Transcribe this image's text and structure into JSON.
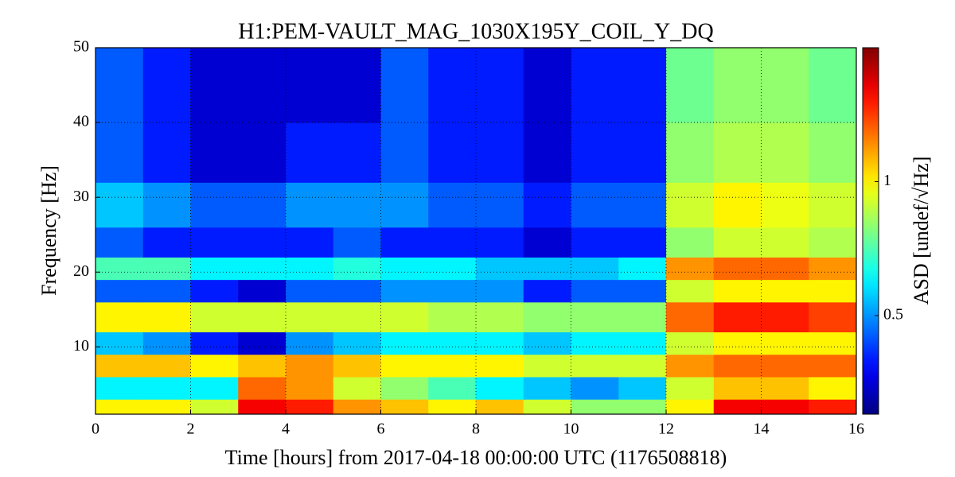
{
  "chart_data": {
    "type": "heatmap",
    "title": "H1:PEM-VAULT_MAG_1030X195Y_COIL_Y_DQ",
    "x_label": "Time [hours] from 2017-04-18 00:00:00 UTC (1176508818)",
    "y_label": "Frequency [Hz]",
    "xlim": [
      0,
      16
    ],
    "xticks": [
      0,
      2,
      4,
      6,
      8,
      10,
      12,
      14,
      16
    ],
    "ylim": [
      1,
      50
    ],
    "yticks": [
      10,
      20,
      30,
      40,
      50
    ],
    "grid": true,
    "x_bins": [
      0,
      1,
      2,
      3,
      4,
      5,
      6,
      7,
      8,
      9,
      10,
      11,
      12,
      13,
      14,
      15,
      16
    ],
    "y_bins": [
      1,
      3,
      6,
      9,
      12,
      16,
      19,
      22,
      26,
      32,
      40,
      50
    ],
    "values": [
      [
        1.0,
        1.0,
        0.9,
        1.6,
        1.5,
        1.2,
        1.1,
        1.0,
        1.1,
        0.9,
        0.8,
        0.8,
        1.0,
        1.6,
        1.6,
        1.5
      ],
      [
        0.6,
        0.6,
        0.6,
        1.3,
        1.2,
        0.9,
        0.8,
        0.7,
        0.6,
        0.55,
        0.5,
        0.55,
        0.9,
        1.1,
        1.1,
        1.0
      ],
      [
        1.1,
        1.1,
        1.0,
        1.1,
        1.2,
        1.1,
        1.0,
        1.0,
        1.0,
        0.9,
        0.9,
        0.9,
        1.2,
        1.3,
        1.3,
        1.3
      ],
      [
        0.55,
        0.5,
        0.4,
        0.35,
        0.5,
        0.55,
        0.6,
        0.6,
        0.6,
        0.55,
        0.6,
        0.6,
        0.9,
        1.0,
        1.0,
        1.0
      ],
      [
        1.0,
        1.0,
        0.9,
        0.9,
        0.9,
        0.9,
        0.9,
        0.85,
        0.85,
        0.8,
        0.8,
        0.8,
        1.3,
        1.5,
        1.5,
        1.4
      ],
      [
        0.45,
        0.45,
        0.4,
        0.35,
        0.45,
        0.45,
        0.5,
        0.5,
        0.5,
        0.4,
        0.45,
        0.45,
        0.9,
        1.0,
        1.0,
        1.0
      ],
      [
        0.7,
        0.7,
        0.6,
        0.6,
        0.6,
        0.65,
        0.6,
        0.6,
        0.55,
        0.55,
        0.55,
        0.6,
        1.2,
        1.3,
        1.3,
        1.2
      ],
      [
        0.45,
        0.4,
        0.4,
        0.4,
        0.4,
        0.45,
        0.4,
        0.4,
        0.4,
        0.35,
        0.4,
        0.4,
        0.8,
        0.9,
        0.9,
        0.85
      ],
      [
        0.55,
        0.5,
        0.45,
        0.45,
        0.5,
        0.5,
        0.5,
        0.45,
        0.45,
        0.4,
        0.45,
        0.45,
        0.9,
        1.0,
        0.95,
        0.9
      ],
      [
        0.45,
        0.4,
        0.35,
        0.35,
        0.4,
        0.4,
        0.45,
        0.4,
        0.4,
        0.35,
        0.4,
        0.4,
        0.8,
        0.85,
        0.85,
        0.8
      ],
      [
        0.45,
        0.4,
        0.35,
        0.35,
        0.35,
        0.35,
        0.45,
        0.4,
        0.4,
        0.35,
        0.4,
        0.4,
        0.75,
        0.8,
        0.8,
        0.75
      ]
    ],
    "colorbar": {
      "label": "ASD [undef/√Hz]",
      "lim": [
        0.3,
        2.0
      ],
      "ticks": [
        0.5,
        1
      ],
      "scale": "log",
      "colormap": "jet"
    }
  }
}
